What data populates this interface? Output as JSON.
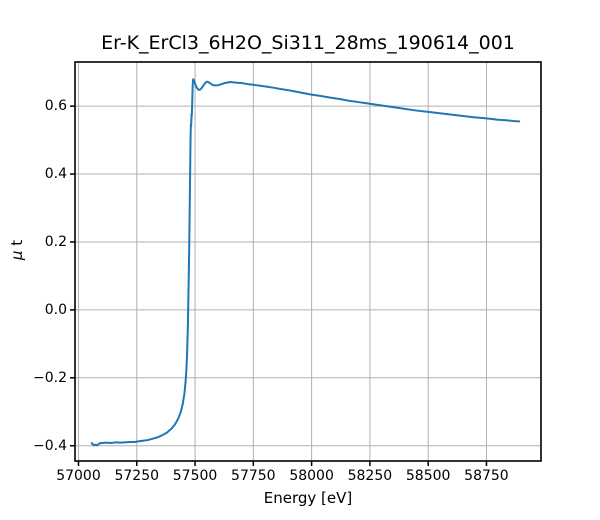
{
  "title": "Er-K_ErCl3_6H2O_Si311_28ms_190614_001",
  "chart_data": {
    "type": "line",
    "title": "Er-K_ErCl3_6H2O_Si311_28ms_190614_001",
    "xlabel": "Energy [eV]",
    "ylabel": "μ t",
    "ylabel_parts": [
      "μ",
      " t"
    ],
    "xlim": [
      56985,
      58984
    ],
    "ylim": [
      -0.445,
      0.73
    ],
    "grid": true,
    "legend": false,
    "line_color": "#1f77b4",
    "grid_color": "#b0b0b0",
    "spine_color": "#000000",
    "background_color": "#ffffff",
    "xticks": {
      "values": [
        57000,
        57250,
        57500,
        57750,
        58000,
        58250,
        58500,
        58750
      ],
      "labels": [
        "57000",
        "57250",
        "57500",
        "57750",
        "58000",
        "58250",
        "58500",
        "58750"
      ]
    },
    "yticks": {
      "values": [
        0.6,
        0.4,
        0.2,
        0.0,
        -0.2,
        -0.4
      ],
      "labels": [
        "0.6",
        "0.4",
        "0.2",
        "0.0",
        "−0.2",
        "−0.4"
      ]
    },
    "series": [
      {
        "name": "mu_t_absorption",
        "points": [
          [
            57057,
            -0.392
          ],
          [
            57065,
            -0.399
          ],
          [
            57072,
            -0.397
          ],
          [
            57080,
            -0.399
          ],
          [
            57090,
            -0.393
          ],
          [
            57100,
            -0.392
          ],
          [
            57120,
            -0.391
          ],
          [
            57140,
            -0.392
          ],
          [
            57160,
            -0.39
          ],
          [
            57180,
            -0.391
          ],
          [
            57200,
            -0.39
          ],
          [
            57220,
            -0.389
          ],
          [
            57240,
            -0.389
          ],
          [
            57260,
            -0.387
          ],
          [
            57280,
            -0.385
          ],
          [
            57300,
            -0.383
          ],
          [
            57320,
            -0.379
          ],
          [
            57340,
            -0.375
          ],
          [
            57360,
            -0.369
          ],
          [
            57380,
            -0.361
          ],
          [
            57400,
            -0.349
          ],
          [
            57415,
            -0.336
          ],
          [
            57428,
            -0.32
          ],
          [
            57438,
            -0.302
          ],
          [
            57447,
            -0.278
          ],
          [
            57454,
            -0.248
          ],
          [
            57459,
            -0.215
          ],
          [
            57463,
            -0.175
          ],
          [
            57466,
            -0.125
          ],
          [
            57469,
            -0.055
          ],
          [
            57471,
            0.02
          ],
          [
            57473,
            0.1
          ],
          [
            57475,
            0.19
          ],
          [
            57477,
            0.3
          ],
          [
            57479,
            0.41
          ],
          [
            57480,
            0.47
          ],
          [
            57481,
            0.52
          ],
          [
            57482,
            0.545
          ],
          [
            57483,
            0.54
          ],
          [
            57484,
            0.558
          ],
          [
            57485,
            0.577
          ],
          [
            57486,
            0.572
          ],
          [
            57487,
            0.59
          ],
          [
            57488,
            0.615
          ],
          [
            57489,
            0.642
          ],
          [
            57490,
            0.663
          ],
          [
            57491,
            0.675
          ],
          [
            57492,
            0.679
          ],
          [
            57494,
            0.678
          ],
          [
            57497,
            0.672
          ],
          [
            57501,
            0.664
          ],
          [
            57506,
            0.656
          ],
          [
            57511,
            0.651
          ],
          [
            57516,
            0.648
          ],
          [
            57522,
            0.649
          ],
          [
            57527,
            0.652
          ],
          [
            57533,
            0.658
          ],
          [
            57539,
            0.664
          ],
          [
            57545,
            0.669
          ],
          [
            57551,
            0.672
          ],
          [
            57557,
            0.671
          ],
          [
            57563,
            0.668
          ],
          [
            57570,
            0.665
          ],
          [
            57577,
            0.662
          ],
          [
            57584,
            0.661
          ],
          [
            57592,
            0.661
          ],
          [
            57600,
            0.662
          ],
          [
            57610,
            0.664
          ],
          [
            57622,
            0.667
          ],
          [
            57635,
            0.669
          ],
          [
            57650,
            0.671
          ],
          [
            57665,
            0.67
          ],
          [
            57680,
            0.669
          ],
          [
            57700,
            0.668
          ],
          [
            57725,
            0.665
          ],
          [
            57750,
            0.663
          ],
          [
            57780,
            0.66
          ],
          [
            57810,
            0.657
          ],
          [
            57840,
            0.654
          ],
          [
            57870,
            0.65
          ],
          [
            57900,
            0.647
          ],
          [
            57930,
            0.643
          ],
          [
            57960,
            0.639
          ],
          [
            58000,
            0.634
          ],
          [
            58040,
            0.63
          ],
          [
            58080,
            0.625
          ],
          [
            58120,
            0.621
          ],
          [
            58160,
            0.616
          ],
          [
            58200,
            0.612
          ],
          [
            58250,
            0.607
          ],
          [
            58300,
            0.602
          ],
          [
            58350,
            0.597
          ],
          [
            58400,
            0.592
          ],
          [
            58450,
            0.587
          ],
          [
            58500,
            0.583
          ],
          [
            58550,
            0.579
          ],
          [
            58600,
            0.575
          ],
          [
            58650,
            0.571
          ],
          [
            58700,
            0.567
          ],
          [
            58750,
            0.564
          ],
          [
            58800,
            0.56
          ],
          [
            58840,
            0.558
          ],
          [
            58870,
            0.556
          ],
          [
            58890,
            0.555
          ]
        ]
      }
    ]
  }
}
